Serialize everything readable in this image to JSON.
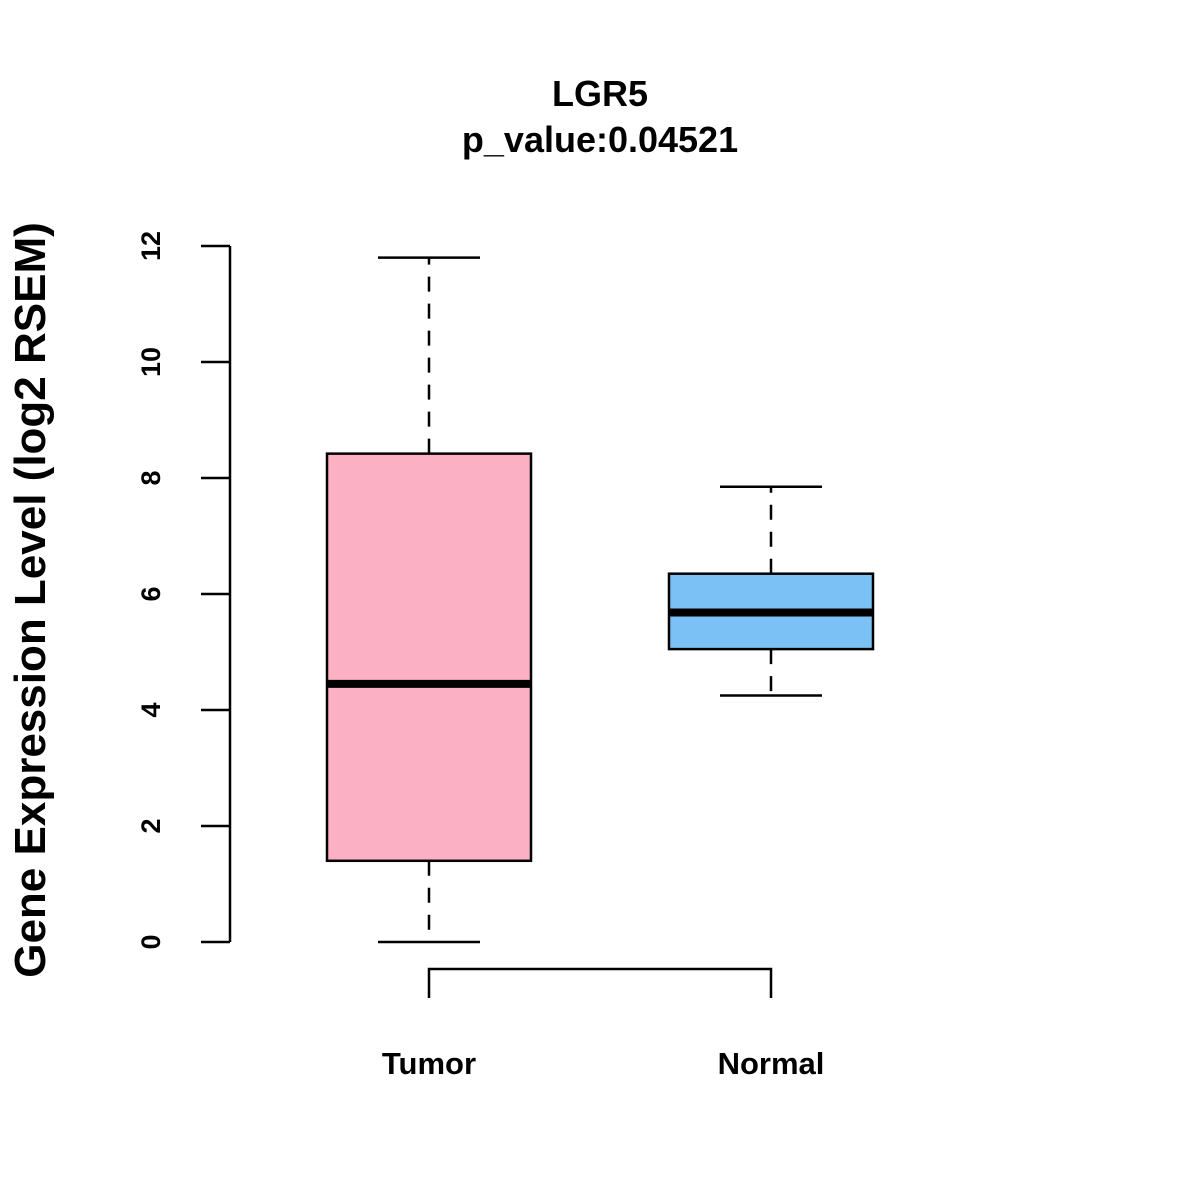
{
  "chart_data": {
    "type": "boxplot",
    "title": "LGR5",
    "subtitle": "p_value:0.04521",
    "xlabel": "",
    "ylabel": "Gene Expression Level (log2 RSEM)",
    "ylim": [
      0,
      12
    ],
    "yticks": [
      0,
      2,
      4,
      6,
      8,
      10,
      12
    ],
    "ytick_labels": [
      "0",
      "2",
      "4",
      "6",
      "8",
      "10",
      "12"
    ],
    "categories": [
      "Tumor",
      "Normal"
    ],
    "grid": false,
    "significance_bracket": true,
    "series": [
      {
        "category": "Tumor",
        "whisker_low": 0.0,
        "q1": 1.4,
        "median": 4.45,
        "q3": 8.42,
        "whisker_high": 11.8,
        "color": "#FBB1C3"
      },
      {
        "category": "Normal",
        "whisker_low": 4.25,
        "q1": 5.05,
        "median": 5.68,
        "q3": 6.35,
        "whisker_high": 7.85,
        "color": "#7BC1F6"
      }
    ]
  }
}
